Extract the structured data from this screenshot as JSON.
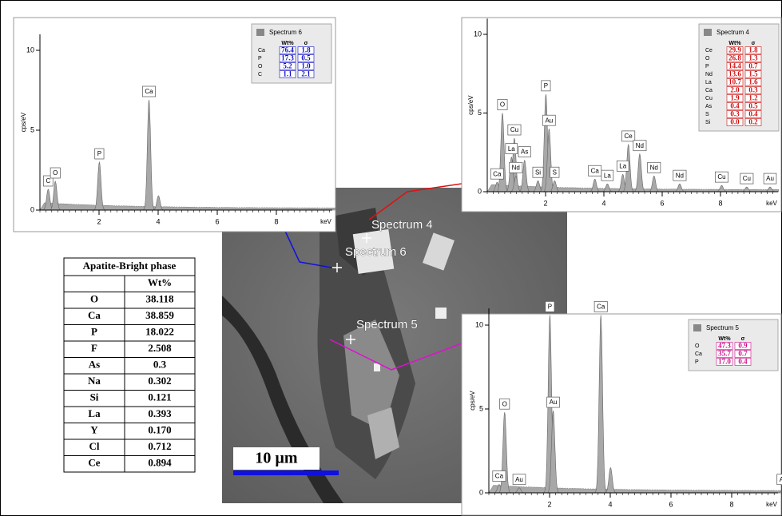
{
  "spectra": [
    {
      "title": "Spectrum 6",
      "ylabel": "cps/eV",
      "xlabel": "keV",
      "xlim": [
        0,
        10
      ],
      "ylim": [
        0,
        11
      ],
      "xticks": [
        2,
        4,
        6,
        8
      ],
      "yticks": [
        0,
        5,
        10
      ],
      "legend_header": [
        "Wt%",
        "σ"
      ],
      "legend_color": "#1010c8",
      "legend_rows": [
        [
          "Ca",
          "76.4",
          "1.8"
        ],
        [
          "P",
          "17.3",
          "0.5"
        ],
        [
          "O",
          "5.2",
          "1.0"
        ],
        [
          "C",
          "1.1",
          "2.1"
        ]
      ],
      "peaks": [
        {
          "label": "C",
          "energy": 0.28,
          "height": 1.3
        },
        {
          "label": "O",
          "energy": 0.52,
          "height": 1.8
        },
        {
          "label": "P",
          "energy": 2.01,
          "height": 3.0
        },
        {
          "label": "Ca",
          "energy": 3.69,
          "height": 6.9
        },
        {
          "label": null,
          "energy": 4.01,
          "height": 0.9
        }
      ]
    },
    {
      "title": "Spectrum 4",
      "ylabel": "cps/eV",
      "xlabel": "keV",
      "xlim": [
        0,
        10
      ],
      "ylim": [
        0,
        11
      ],
      "xticks": [
        2,
        4,
        6,
        8
      ],
      "yticks": [
        0,
        5,
        10
      ],
      "legend_header": [
        "Wt%",
        "σ"
      ],
      "legend_color": "#d01010",
      "legend_rows": [
        [
          "Ce",
          "29.9",
          "1.8"
        ],
        [
          "O",
          "26.8",
          "1.3"
        ],
        [
          "P",
          "14.4",
          "0.7"
        ],
        [
          "Nd",
          "13.6",
          "1.5"
        ],
        [
          "La",
          "10.7",
          "1.6"
        ],
        [
          "Ca",
          "2.0",
          "0.3"
        ],
        [
          "Cu",
          "1.9",
          "1.2"
        ],
        [
          "As",
          "0.4",
          "0.5"
        ],
        [
          "S",
          "0.3",
          "0.4"
        ],
        [
          "Si",
          "0.0",
          "0.2"
        ]
      ],
      "peaks": [
        {
          "label": "Ca",
          "energy": 0.34,
          "height": 0.6
        },
        {
          "label": "O",
          "energy": 0.52,
          "height": 5.0
        },
        {
          "label": "Cu",
          "energy": 0.93,
          "height": 3.4
        },
        {
          "label": "La",
          "energy": 0.83,
          "height": 2.2
        },
        {
          "label": "As",
          "energy": 1.28,
          "height": 2.0
        },
        {
          "label": "Nd",
          "energy": 0.98,
          "height": 1.0
        },
        {
          "label": "Si",
          "energy": 1.74,
          "height": 0.7
        },
        {
          "label": "P",
          "energy": 2.01,
          "height": 6.2
        },
        {
          "label": "Au",
          "energy": 2.12,
          "height": 4.0
        },
        {
          "label": "S",
          "energy": 2.31,
          "height": 0.7
        },
        {
          "label": "Ca",
          "energy": 3.69,
          "height": 0.8
        },
        {
          "label": "La",
          "energy": 4.12,
          "height": 0.5
        },
        {
          "label": "La",
          "energy": 4.65,
          "height": 1.1
        },
        {
          "label": "Ce",
          "energy": 4.84,
          "height": 3.0
        },
        {
          "label": "Nd",
          "energy": 5.23,
          "height": 2.4
        },
        {
          "label": "Nd",
          "energy": 5.72,
          "height": 1.0
        },
        {
          "label": "Nd",
          "energy": 6.6,
          "height": 0.5
        },
        {
          "label": "Cu",
          "energy": 8.04,
          "height": 0.4
        },
        {
          "label": "Cu",
          "energy": 8.9,
          "height": 0.3
        },
        {
          "label": "Au",
          "energy": 9.7,
          "height": 0.3
        }
      ]
    },
    {
      "title": "Spectrum 5",
      "ylabel": "cps/eV",
      "xlabel": "keV",
      "xlim": [
        0,
        10
      ],
      "ylim": [
        0,
        11
      ],
      "xticks": [
        2,
        4,
        6,
        8
      ],
      "yticks": [
        0,
        5,
        10
      ],
      "legend_header": [
        "Wt%",
        "σ"
      ],
      "legend_color": "#d0108c",
      "legend_rows": [
        [
          "O",
          "47.3",
          "0.9"
        ],
        [
          "Ca",
          "35.7",
          "0.7"
        ],
        [
          "P",
          "17.0",
          "0.4"
        ]
      ],
      "peaks": [
        {
          "label": "Ca",
          "energy": 0.34,
          "height": 0.5
        },
        {
          "label": "O",
          "energy": 0.52,
          "height": 4.8
        },
        {
          "label": "Au",
          "energy": 1.0,
          "height": 0.3
        },
        {
          "label": "P",
          "energy": 2.01,
          "height": 10.6
        },
        {
          "label": "Au",
          "energy": 2.12,
          "height": 4.9
        },
        {
          "label": "Ca",
          "energy": 3.69,
          "height": 10.6
        },
        {
          "label": null,
          "energy": 4.01,
          "height": 1.5
        },
        {
          "label": "Au",
          "energy": 9.7,
          "height": 0.3
        }
      ]
    }
  ],
  "image": {
    "labels": [
      "Spectrum 4",
      "Spectrum 6",
      "Spectrum 5"
    ],
    "scale_bar": "10 µm"
  },
  "table": {
    "title": "Apatite-Bright phase",
    "header": "Wt%",
    "rows": [
      [
        "O",
        "38.118"
      ],
      [
        "Ca",
        "38.859"
      ],
      [
        "P",
        "18.022"
      ],
      [
        "F",
        "2.508"
      ],
      [
        "As",
        "0.3"
      ],
      [
        "Na",
        "0.302"
      ],
      [
        "Si",
        "0.121"
      ],
      [
        "La",
        "0.393"
      ],
      [
        "Y",
        "0.170"
      ],
      [
        "Cl",
        "0.712"
      ],
      [
        "Ce",
        "0.894"
      ]
    ]
  }
}
